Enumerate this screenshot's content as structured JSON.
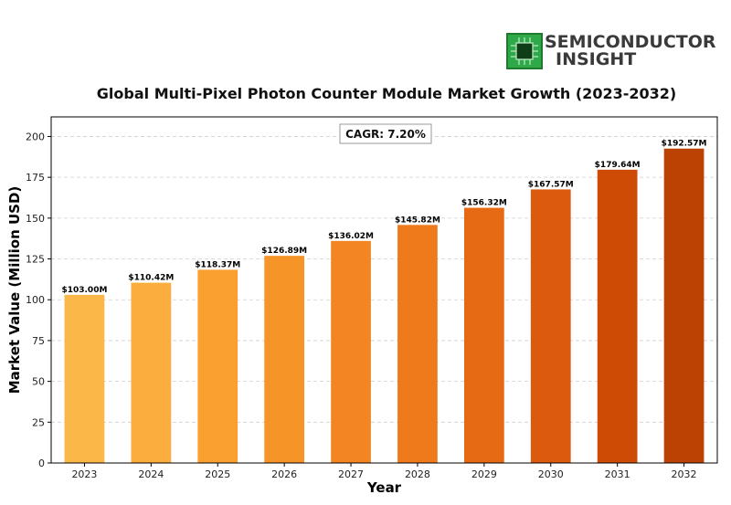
{
  "logo": {
    "line1": "SEMICONDUCTOR",
    "line2": "INSIGHT"
  },
  "chart_data": {
    "type": "bar",
    "title": "Global Multi-Pixel Photon Counter Module Market Growth (2023-2032)",
    "xlabel": "Year",
    "ylabel": "Market Value (Million USD)",
    "categories": [
      "2023",
      "2024",
      "2025",
      "2026",
      "2027",
      "2028",
      "2029",
      "2030",
      "2031",
      "2032"
    ],
    "values": [
      103.0,
      110.42,
      118.37,
      126.89,
      136.02,
      145.82,
      156.32,
      167.57,
      179.64,
      192.57
    ],
    "value_labels": [
      "$103.00M",
      "$110.42M",
      "$118.37M",
      "$126.89M",
      "$136.02M",
      "$145.82M",
      "$156.32M",
      "$167.57M",
      "$179.64M",
      "$192.57M"
    ],
    "bar_colors": [
      "#fbb748",
      "#fbad3d",
      "#f9a031",
      "#f79428",
      "#f38622",
      "#ee7a1b",
      "#e66a14",
      "#db5a0e",
      "#cd4b05",
      "#bc4203"
    ],
    "ylim": [
      0,
      212
    ],
    "yticks": [
      0,
      25,
      50,
      75,
      100,
      125,
      150,
      175,
      200
    ],
    "grid": true,
    "annotation": "CAGR: 7.20%"
  }
}
